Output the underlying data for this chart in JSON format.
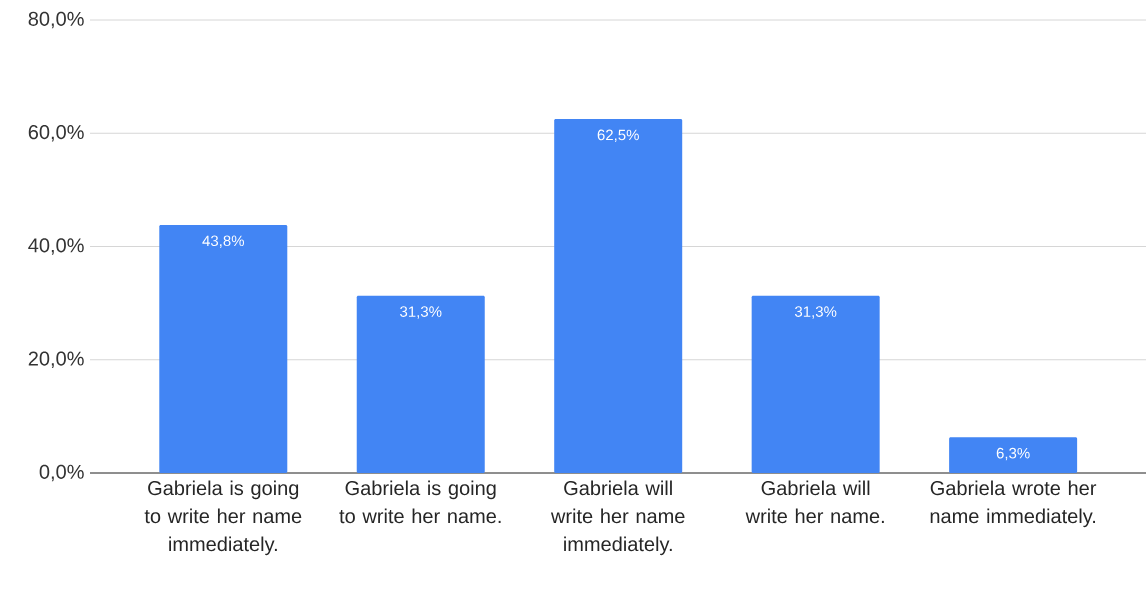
{
  "chart_data": {
    "type": "bar",
    "categories": [
      "Gabriela is going to write her name immediately.",
      "Gabriela is going to write her name.",
      "Gabriela will write her name immediately.",
      "Gabriela will write her name.",
      "Gabriela wrote her name immediately."
    ],
    "values": [
      43.8,
      31.3,
      62.5,
      31.3,
      6.3
    ],
    "value_labels": [
      "43,8%",
      "31,3%",
      "62,5%",
      "31,3%",
      "6,3%"
    ],
    "color": "#4285f4",
    "ylim": [
      0,
      80
    ],
    "yticks": [
      {
        "value": 0,
        "label": "0,0%"
      },
      {
        "value": 20,
        "label": "20,0%"
      },
      {
        "value": 40,
        "label": "40,0%"
      },
      {
        "value": 60,
        "label": "60,0%"
      },
      {
        "value": 80,
        "label": "80,0%"
      }
    ],
    "grid": "y"
  }
}
